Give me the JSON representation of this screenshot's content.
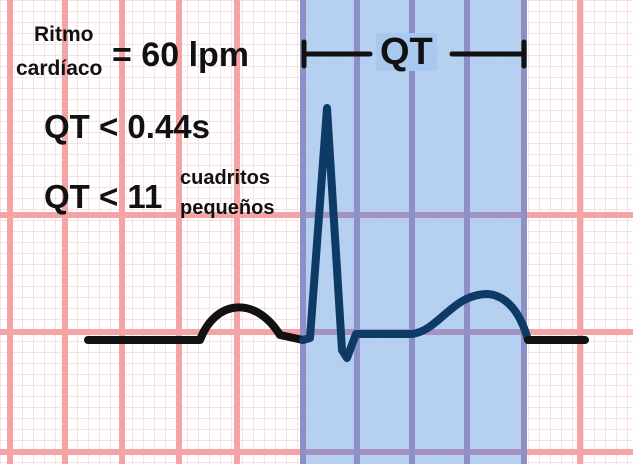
{
  "labels": {
    "heart_rate_line1": "Ritmo",
    "heart_rate_line2": "cardíaco",
    "heart_rate_value": "= 60 lpm",
    "qt_seconds": "QT < 0.44s",
    "qt_squares_prefix": "QT < 11",
    "qt_squares_sup": "cuadritos",
    "qt_squares_sub": "pequeños",
    "qt_bracket": "QT"
  },
  "colors": {
    "grid_minor": "#f2c4c4",
    "grid_major": "#f4a4a4",
    "highlight": "#a9c8ef",
    "highlight_grid": "#8f8fc8",
    "trace_normal": "#111111",
    "trace_qt": "#0d3b66"
  }
}
